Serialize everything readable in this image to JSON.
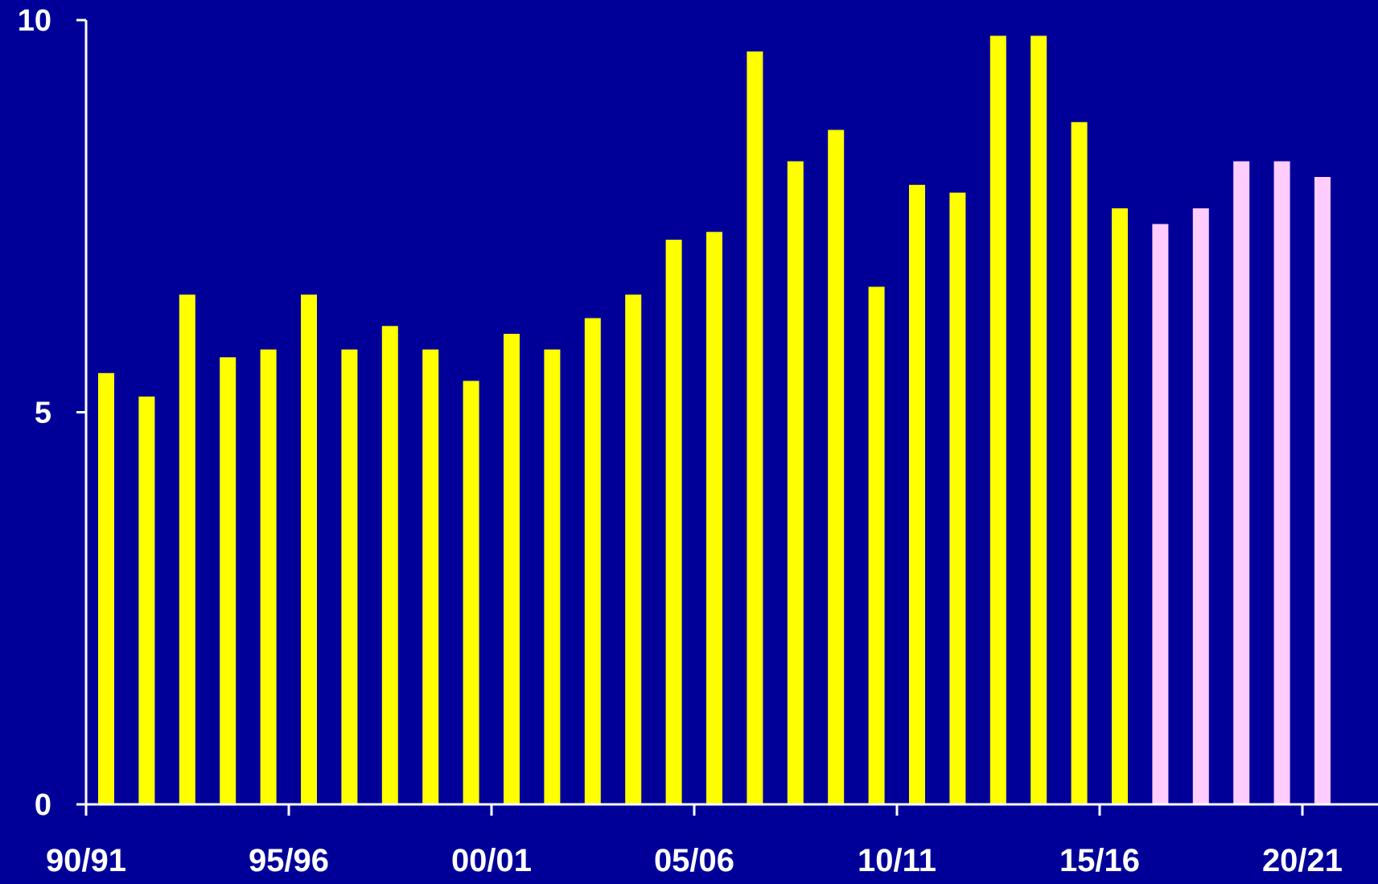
{
  "chart_data": {
    "type": "bar",
    "title": "",
    "xlabel": "",
    "ylabel": "",
    "ylim": [
      0,
      10
    ],
    "y_ticks": [
      0,
      5,
      10
    ],
    "y_tick_labels": [
      "0",
      "5",
      "10"
    ],
    "x_tick_labels": [
      "90/91",
      "95/96",
      "00/01",
      "05/06",
      "10/11",
      "15/16",
      "20/21"
    ],
    "x_tick_positions": [
      0,
      5,
      10,
      15,
      20,
      25,
      30
    ],
    "grid": false,
    "legend": "none",
    "colors": {
      "background": "#000099",
      "actual": "#ffff00",
      "projected": "#ffccff",
      "axis": "#ffffff"
    },
    "values": [
      5.5,
      5.2,
      6.5,
      5.7,
      5.8,
      6.5,
      5.8,
      6.1,
      5.8,
      5.4,
      6.0,
      5.8,
      6.2,
      6.5,
      7.2,
      7.3,
      9.6,
      8.2,
      8.6,
      6.6,
      7.9,
      7.8,
      9.8,
      9.8,
      8.7,
      7.6,
      7.4,
      7.6,
      8.2,
      8.2,
      8.0
    ],
    "series_type": [
      "actual",
      "actual",
      "actual",
      "actual",
      "actual",
      "actual",
      "actual",
      "actual",
      "actual",
      "actual",
      "actual",
      "actual",
      "actual",
      "actual",
      "actual",
      "actual",
      "actual",
      "actual",
      "actual",
      "actual",
      "actual",
      "actual",
      "actual",
      "actual",
      "actual",
      "actual",
      "projected",
      "projected",
      "projected",
      "projected",
      "projected"
    ]
  }
}
